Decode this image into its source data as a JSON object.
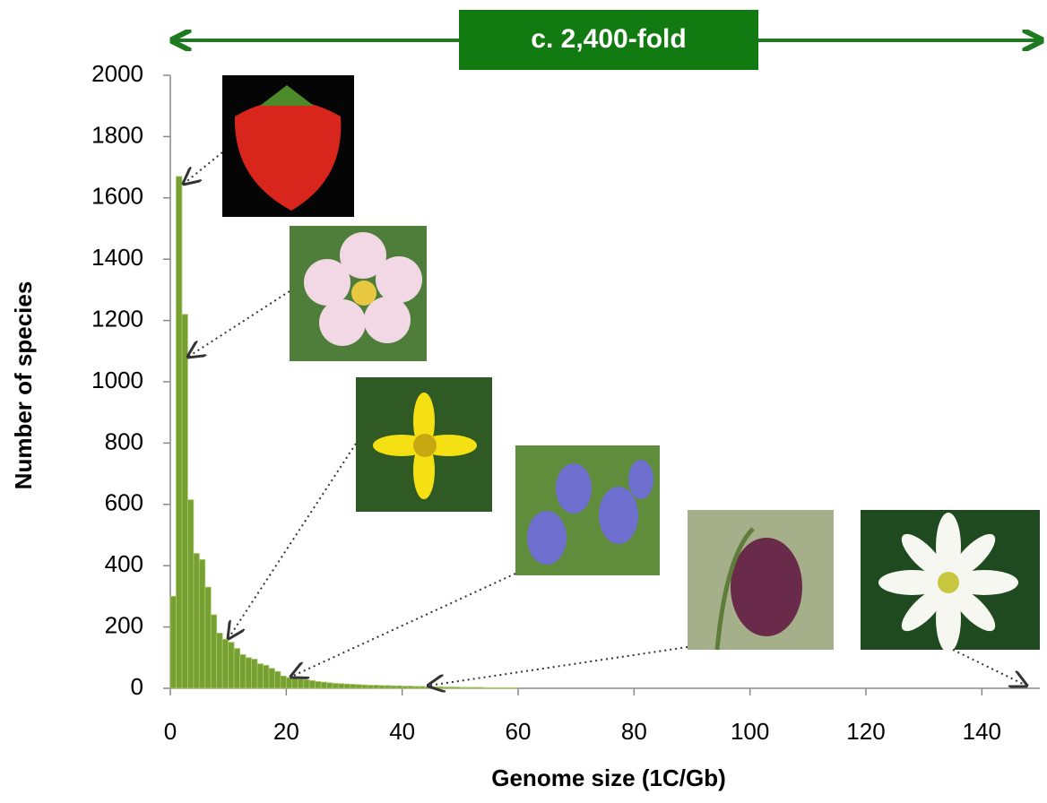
{
  "chart_data": {
    "type": "histogram",
    "annotation": "c. 2,400-fold",
    "xlabel": "Genome size (1C/Gb)",
    "ylabel": "Number of species",
    "bins": [
      0,
      1,
      2,
      3,
      4,
      5,
      6,
      7,
      8,
      9,
      10,
      11,
      12,
      13,
      14,
      15,
      16,
      17,
      18,
      19,
      20,
      21,
      22,
      23,
      24,
      25,
      26,
      27,
      28,
      29,
      30,
      31,
      32,
      33,
      34,
      35,
      36,
      37,
      38,
      39,
      40,
      41,
      42,
      43,
      44,
      45,
      46,
      47,
      48,
      49,
      50,
      51,
      52,
      53,
      54,
      55,
      56,
      57,
      58,
      59,
      60
    ],
    "values": [
      300,
      1670,
      1220,
      615,
      440,
      420,
      330,
      240,
      180,
      160,
      150,
      130,
      110,
      100,
      95,
      80,
      75,
      65,
      55,
      40,
      35,
      32,
      30,
      28,
      25,
      22,
      20,
      18,
      16,
      15,
      14,
      13,
      12,
      11,
      10,
      10,
      9,
      9,
      8,
      8,
      7,
      7,
      6,
      6,
      5,
      5,
      5,
      4,
      4,
      4,
      3,
      3,
      3,
      3,
      2,
      2,
      2,
      2,
      2,
      2
    ],
    "color": "#76a132",
    "xlim": [
      0,
      150
    ],
    "xticks": [
      0,
      20,
      40,
      60,
      80,
      100,
      120,
      140
    ],
    "ylim": [
      0,
      2000
    ],
    "yticks": [
      0,
      200,
      400,
      600,
      800,
      1000,
      1200,
      1400,
      1600,
      1800,
      2000
    ]
  }
}
